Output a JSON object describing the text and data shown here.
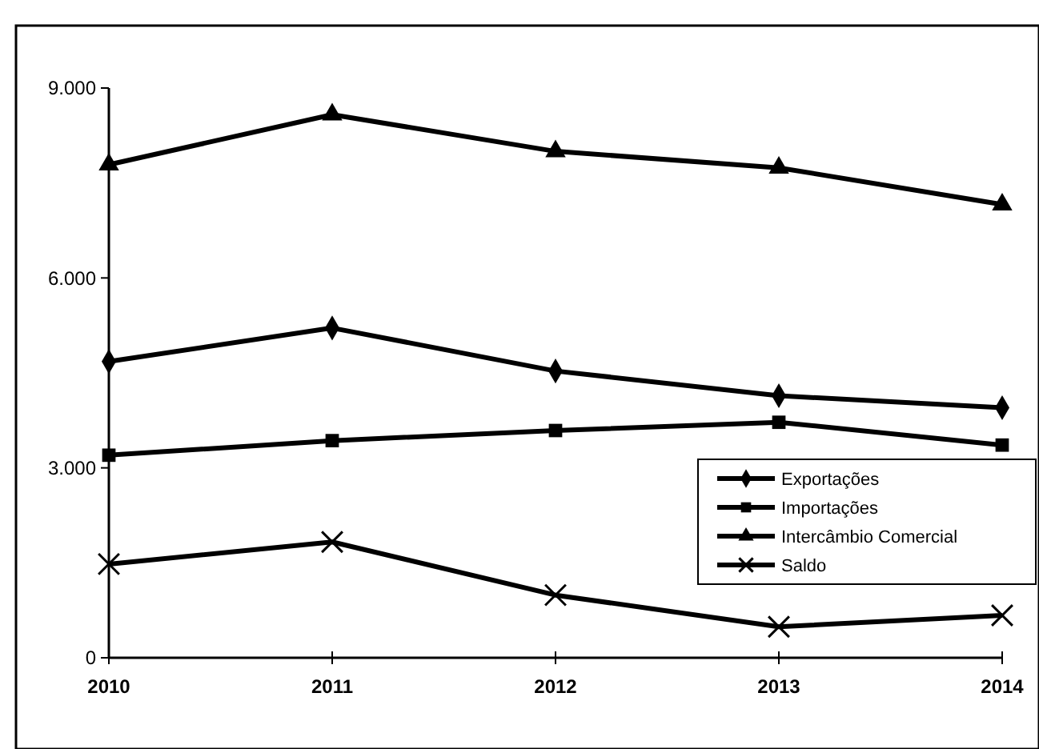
{
  "chart_data": {
    "type": "line",
    "categories": [
      "2010",
      "2011",
      "2012",
      "2013",
      "2014"
    ],
    "series": [
      {
        "name": "Exportações",
        "color": "#000000",
        "marker": "diamond",
        "values": [
          4680,
          5210,
          4530,
          4140,
          3950
        ]
      },
      {
        "name": "Importações",
        "color": "#000000",
        "marker": "square",
        "values": [
          3200,
          3430,
          3590,
          3720,
          3360
        ]
      },
      {
        "name": "Intercâmbio Comercial",
        "color": "#000000",
        "marker": "triangle",
        "values": [
          7790,
          8580,
          8000,
          7740,
          7160
        ]
      },
      {
        "name": "Saldo",
        "color": "#000000",
        "marker": "cross",
        "values": [
          1480,
          1830,
          990,
          490,
          670
        ]
      }
    ],
    "ylim": [
      0,
      9000
    ],
    "yticks": [
      {
        "value": 0,
        "label": "0"
      },
      {
        "value": 3000,
        "label": "3.000"
      },
      {
        "value": 6000,
        "label": "6.000"
      },
      {
        "value": 9000,
        "label": "9.000"
      }
    ],
    "grid": false,
    "legend": "right"
  }
}
